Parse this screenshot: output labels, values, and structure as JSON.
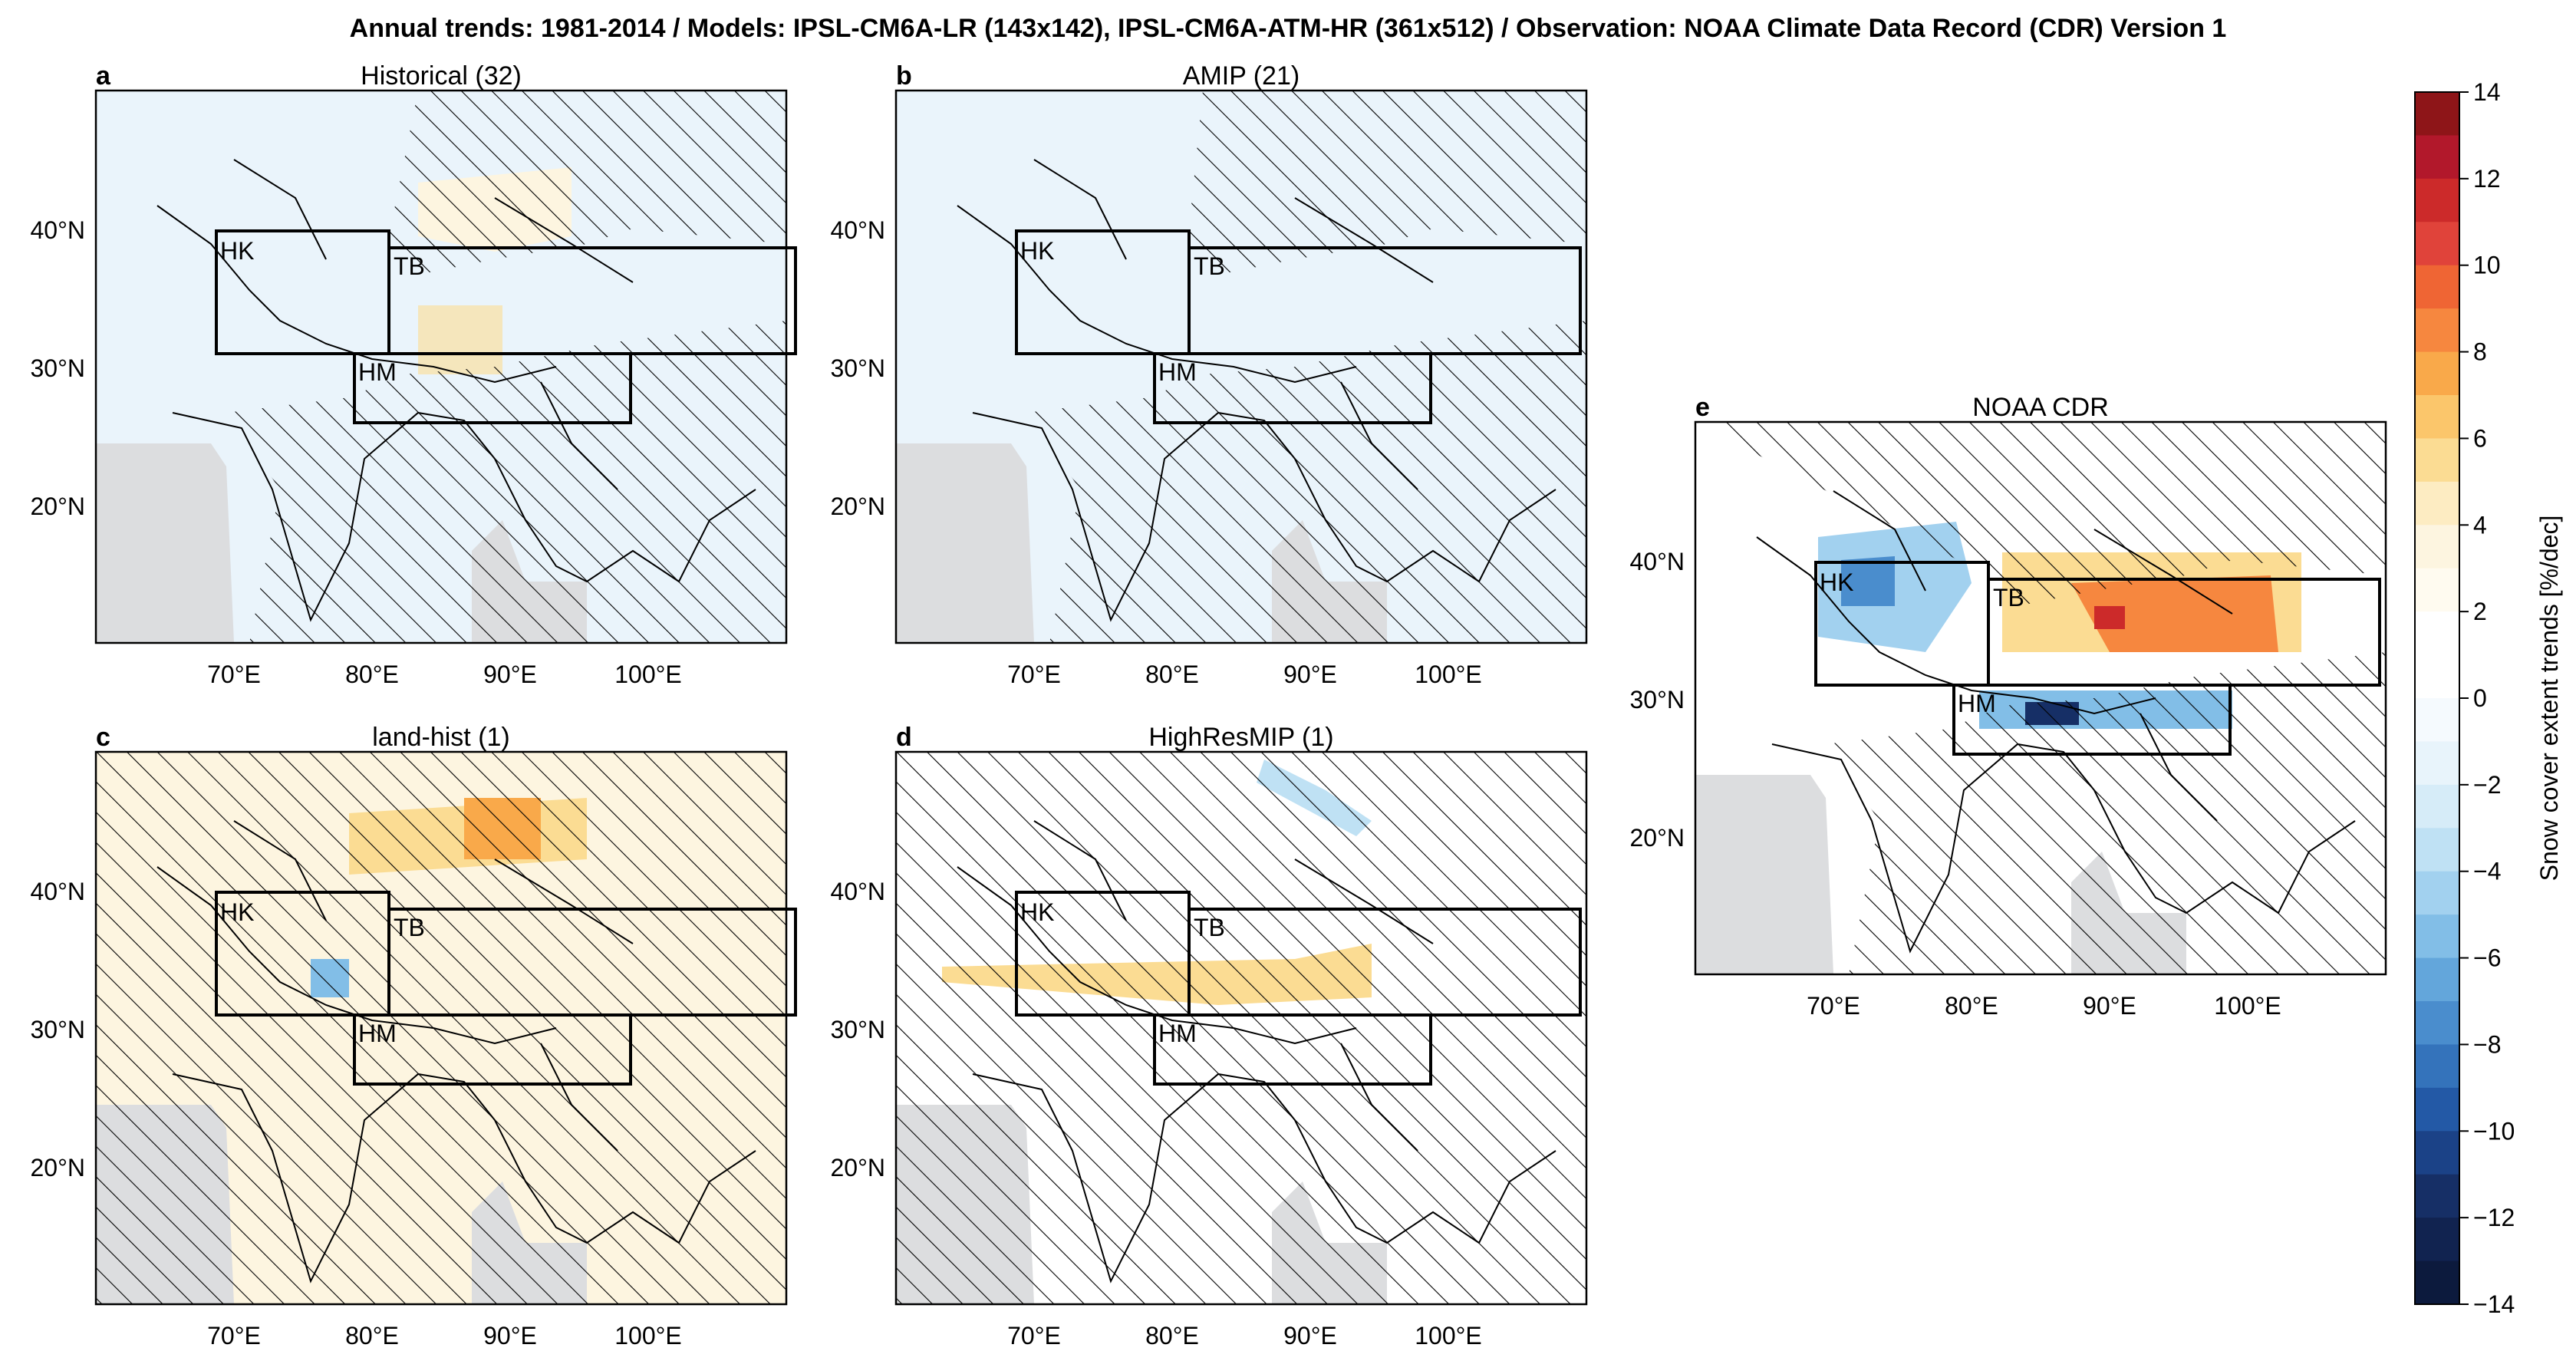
{
  "title": "Annual trends: 1981-2014 / Models: IPSL-CM6A-LR (143x142), IPSL-CM6A-ATM-HR (361x512) / Observation: NOAA Climate Data Record (CDR) Version 1",
  "lon_ticks": [
    "70°E",
    "80°E",
    "90°E",
    "100°E"
  ],
  "lat_ticks": [
    "40°N",
    "30°N",
    "20°N"
  ],
  "regions": [
    "HK",
    "TB",
    "HM"
  ],
  "panels": [
    {
      "label": "a",
      "title": "Historical (32)"
    },
    {
      "label": "b",
      "title": "AMIP (21)"
    },
    {
      "label": "c",
      "title": "land-hist (1)"
    },
    {
      "label": "d",
      "title": "HighResMIP (1)"
    },
    {
      "label": "e",
      "title": "NOAA CDR"
    }
  ],
  "colorbar": {
    "label": "Snow cover extent trends [%/dec]",
    "ticks": [
      "14",
      "12",
      "10",
      "8",
      "6",
      "4",
      "2",
      "0",
      "−2",
      "−4",
      "−6",
      "−8",
      "−10",
      "−12",
      "−14"
    ],
    "colors": [
      "#8e1518",
      "#b2182b",
      "#cc2a2a",
      "#e0433a",
      "#ef6534",
      "#f6873f",
      "#f9a94a",
      "#fbc66b",
      "#fbdc93",
      "#fdecc2",
      "#fdf5e0",
      "#fffbf0",
      "#ffffff",
      "#ffffff",
      "#f5fafe",
      "#e8f4fb",
      "#d6ecf8",
      "#bfe1f4",
      "#a2d1ef",
      "#82bee7",
      "#63a6db",
      "#4a8dcd",
      "#3473bb",
      "#2359a6",
      "#1b4287",
      "#162f66",
      "#112350",
      "#0c1a3d"
    ]
  },
  "colors": {
    "land_grey": "#dcdddf",
    "light_blue": "#eaf4fb",
    "box_stroke": "#000000"
  }
}
